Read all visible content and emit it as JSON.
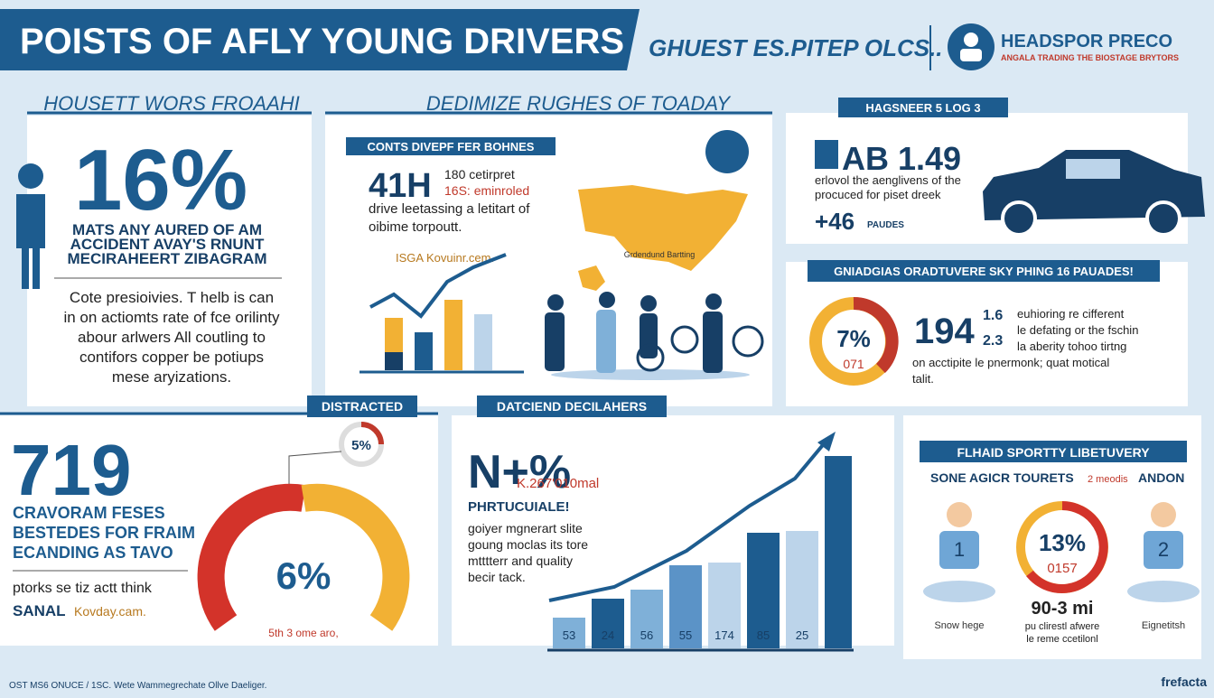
{
  "header": {
    "title": "POISTS OF AFLY YOUNG DRIVERS",
    "subtitle": "GHUEST ES.PITEP OLCS..",
    "brand": "HEADSPOR PRECO",
    "brand_tagline": "ANGALA TRADING THE BIOSTAGE BRYTORS"
  },
  "left_top": {
    "heading": "HOUSETT WORS FROAAHI",
    "stat": "16%",
    "caption": [
      "MATS ANY AURED OF AM",
      "ACCIDENT AVAY'S RNUNT",
      "MECIRAHEERT ZIBAGRAM"
    ],
    "body": [
      "Cote presioivies. T helb is can",
      "in on actiomts rate of fce orilinty",
      "abour arlwers All coutling to",
      "contifors copper be potiups",
      "mese aryizations."
    ]
  },
  "middle_top": {
    "heading": "DEDIMIZE RUGHES OF TOADAY",
    "label": "CONTS DIVEPF FER BOHNES",
    "stat": "41H",
    "stat_note": [
      "180 cetirpret",
      "16S: eminroled"
    ],
    "body": [
      "drive leetassing a letitart of",
      "oibime torpoutt."
    ],
    "source": "ISGA Kovuinr.cem.",
    "map_label": "Grdendund Bartting"
  },
  "right_top": {
    "label": "HAGSNEER 5 LOG 3",
    "stat": "AB 1.49",
    "body": [
      "erlovol the aenglivens of the",
      "procuced for piset dreek"
    ],
    "stat2": "+46",
    "stat2_unit": "PAUDES"
  },
  "right_mid": {
    "label": "GNIADGIAS ORADTUVERE SKY PHING 16 PAUADES!",
    "donut": "7%",
    "donut_sub": "071",
    "stat": "194",
    "stat_sup": "1.6",
    "stat_sub": "2.3",
    "body": [
      "euhioring re cifferent",
      "le defating or the fschin",
      "la aberity tohoo tirtng",
      "on acctipite le pnermonk; quat motical",
      "talit."
    ]
  },
  "bottom_left": {
    "label": "DISTRACTED",
    "stat": "719",
    "caption": [
      "CRAVORAM FESES",
      "BESTEDES FOR FRAIM",
      "ECANDING AS TAVO"
    ],
    "note": "ptorks se tiz actt think",
    "source_label": "SANAL",
    "source": "Kovday.cam.",
    "small_donut": "5%",
    "gauge": "6%",
    "gauge_note": "5th 3 ome aro,"
  },
  "bottom_mid": {
    "label": "DATCIEND DECILAHERS",
    "stat": "N+%",
    "stat_note": "K.267'010mal",
    "sub": "PHRTUCUIALE!",
    "body": [
      "goiyer mgnerart slite",
      "goung moclas its tore",
      "mtttterr and quality",
      "becir tack."
    ],
    "bars": [
      "53",
      "24",
      "56",
      "55",
      "174",
      "85",
      "25"
    ]
  },
  "bottom_right": {
    "label": "FLHAID SPORTTY LIBETUVERY",
    "sub": "SONE AGICR TOURETS",
    "sub_tag": "2 meodis",
    "sub_end": "ANDON",
    "person1": "1",
    "person1_label": "Snow hege",
    "donut": "13%",
    "donut_sub": "0157",
    "stat": "90-3 mi",
    "note": [
      "pu clirestl afwere",
      "le reme ccetilonl"
    ],
    "person2": "2",
    "person2_label": "Eignetitsh"
  },
  "footer": {
    "credit": "OST MS6 ONUCE / 1SC. Wete Wammegrechate Ollve Daeliger.",
    "logo": "frefacta"
  }
}
